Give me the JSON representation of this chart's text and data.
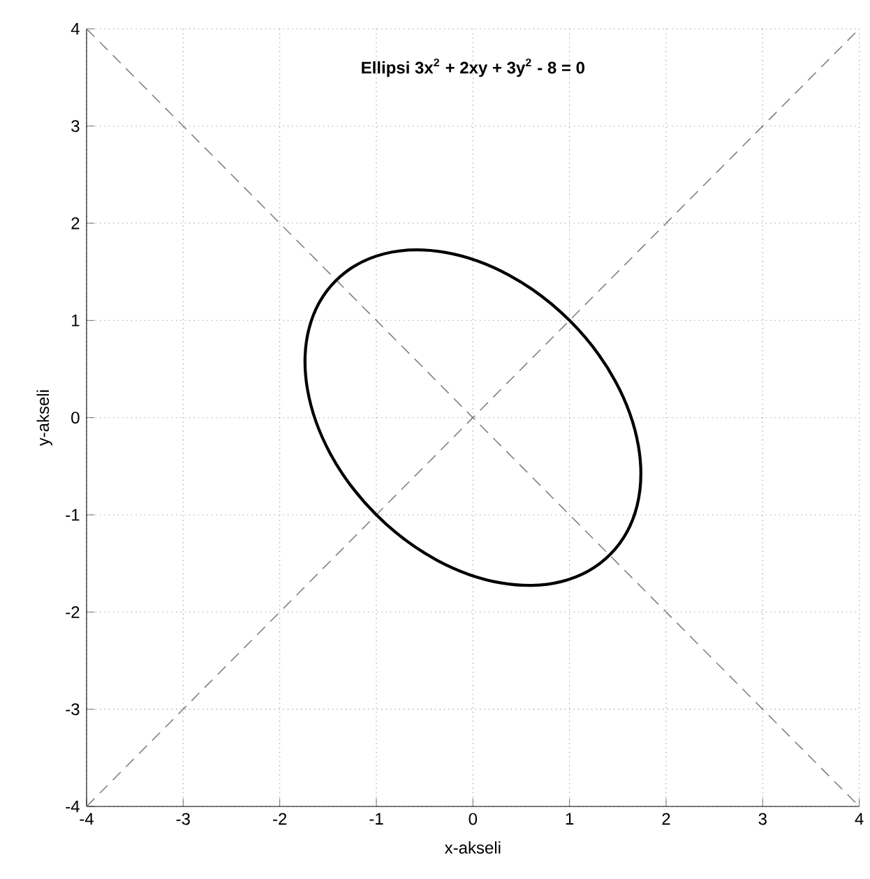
{
  "chart_data": {
    "type": "line",
    "title": "Ellipsi 3x$^{2}$ + 2xy + 3y$^{2}$ - 8 = 0",
    "xlabel": "x-akseli",
    "ylabel": "y-akseli",
    "xlim": [
      -4,
      4
    ],
    "ylim": [
      -4,
      4
    ],
    "xticks": [
      -4,
      -3,
      -2,
      -1,
      0,
      1,
      2,
      3,
      4
    ],
    "yticks": [
      -4,
      -3,
      -2,
      -1,
      0,
      1,
      2,
      3,
      4
    ],
    "grid": true,
    "marker": "none",
    "series": [
      {
        "color": "#808080",
        "line_style": "dashed",
        "x": [
          -4,
          -3,
          -2,
          -1,
          0,
          1,
          2,
          3,
          4
        ],
        "values": [
          -4,
          -3,
          -2,
          -1,
          0,
          1,
          2,
          3,
          4
        ]
      },
      {
        "color": "#808080",
        "line_style": "dashed",
        "x": [
          -4,
          -3,
          -2,
          -1,
          0,
          1,
          2,
          3,
          4
        ],
        "values": [
          4,
          3,
          2,
          1,
          0,
          -1,
          -2,
          -3,
          -4
        ]
      }
    ]
  }
}
